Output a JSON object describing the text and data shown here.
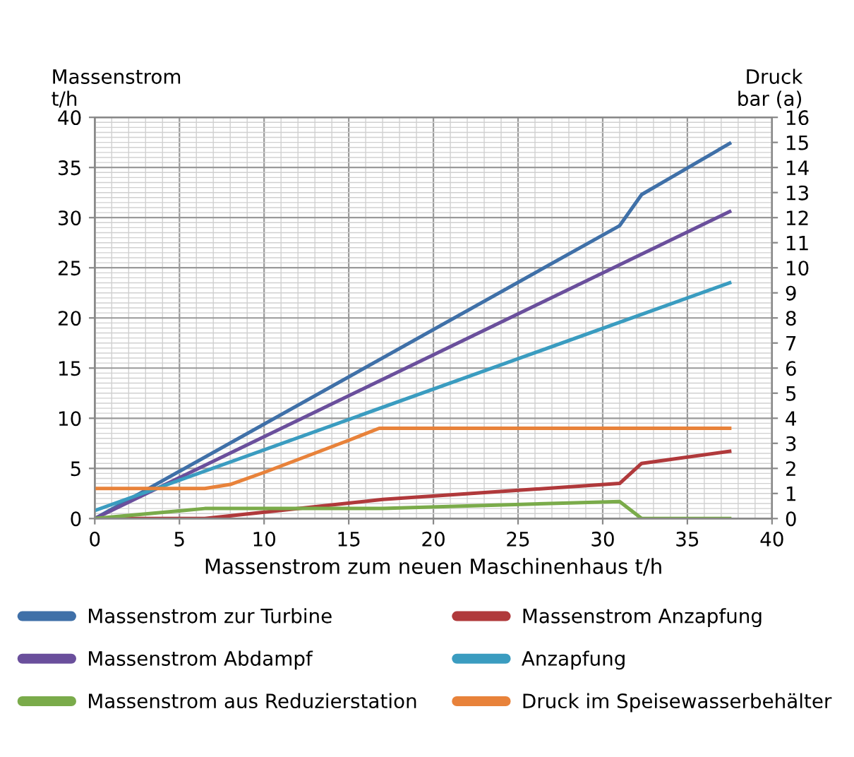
{
  "chart_data": {
    "type": "line",
    "xlabel": "Massenstrom zum neuen Maschinenhaus t/h",
    "ylabel": "Massenstrom\nt/h",
    "y2label": "Druck\nbar (a)",
    "xlim": [
      0,
      40
    ],
    "xticks": [
      0,
      5,
      10,
      15,
      20,
      25,
      30,
      35,
      40
    ],
    "ylim": [
      0,
      40
    ],
    "yticks": [
      0,
      5,
      10,
      15,
      20,
      25,
      30,
      35,
      40
    ],
    "y2lim": [
      0,
      16
    ],
    "y2ticks": [
      0,
      1,
      2,
      3,
      4,
      5,
      6,
      7,
      8,
      9,
      10,
      11,
      12,
      13,
      14,
      15,
      16
    ],
    "grid": true,
    "legend": "bottom",
    "marker": "none",
    "line_style": "solid",
    "series": [
      {
        "name": "Massenstrom zur Turbine",
        "color": "#3f70a8",
        "x": [
          0,
          31,
          32.3,
          37.5
        ],
        "values": [
          0,
          29.2,
          32.3,
          37.4
        ]
      },
      {
        "name": "Massenstrom Anzapfung",
        "color": "#b0393b",
        "x": [
          0,
          6.5,
          17,
          31,
          32.3,
          37.5
        ],
        "values": [
          0,
          0,
          1.9,
          3.5,
          5.5,
          6.7
        ]
      },
      {
        "name": "Massenstrom Abdampf",
        "color": "#6a4f9c",
        "x": [
          0,
          37.5
        ],
        "values": [
          0,
          30.6
        ]
      },
      {
        "name": "Anzapfung",
        "color": "#3a9cc0",
        "axis": "y2",
        "x": [
          0,
          37.5
        ],
        "values": [
          0.32,
          9.4
        ]
      },
      {
        "name": "Massenstrom aus Reduzierstation",
        "color": "#7aab4a",
        "x": [
          0,
          6.5,
          17,
          31,
          32.3,
          37.5
        ],
        "values": [
          0,
          1.0,
          1.0,
          1.7,
          0,
          0
        ]
      },
      {
        "name": "Druck im Speisewasserbehälter",
        "color": "#e8823a",
        "axis": "y2",
        "x": [
          0,
          6.5,
          8,
          10,
          15,
          16.8,
          37.5
        ],
        "values": [
          1.2,
          1.2,
          1.36,
          1.84,
          3.12,
          3.6,
          3.6
        ]
      }
    ]
  }
}
